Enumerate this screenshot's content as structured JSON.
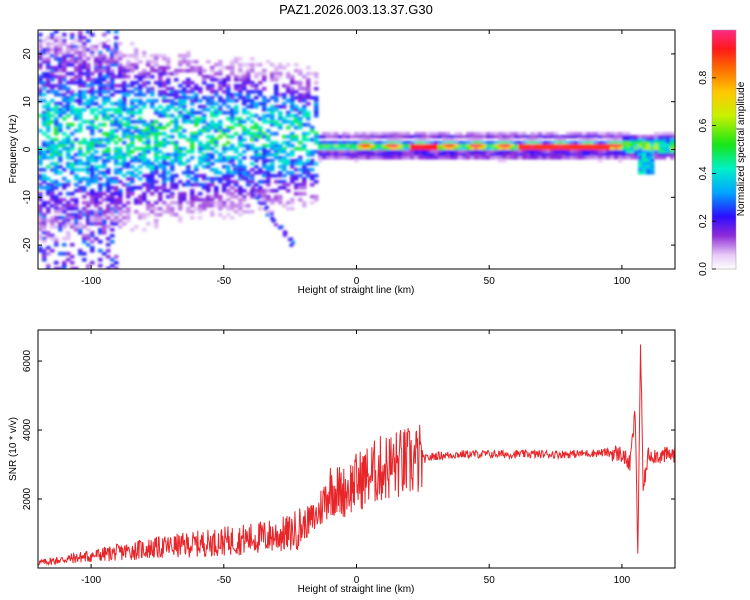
{
  "figure_title": "PAZ1.2026.003.13.37.G30",
  "chart_data": [
    {
      "type": "heatmap",
      "title": "PAZ1.2026.003.13.37.G30",
      "xlabel": "Height of straight line (km)",
      "ylabel": "Frequency (Hz)",
      "xlim": [
        -120,
        120
      ],
      "ylim": [
        -25,
        25
      ],
      "x_ticks": [
        -100,
        -50,
        0,
        50,
        100
      ],
      "y_ticks": [
        -20,
        -10,
        0,
        10,
        20
      ],
      "colorbar": {
        "label": "Normalized spectral amplitude",
        "range": [
          0.0,
          1.0
        ],
        "ticks": [
          0.0,
          0.2,
          0.4,
          0.6,
          0.8
        ],
        "tick_labels": [
          "0.0",
          "0.2",
          "0.4",
          "0.6",
          "0.8"
        ]
      },
      "description_points": [
        {
          "x_range": [
            -120,
            -20
          ],
          "freq_center": 3,
          "freq_spread": 12,
          "amplitude": 0.25
        },
        {
          "x_range": [
            -20,
            0
          ],
          "freq_center": 1.5,
          "freq_spread": 3,
          "amplitude": 0.4
        },
        {
          "x_range": [
            0,
            100
          ],
          "freq_center": 1,
          "freq_spread": 1.5,
          "amplitude": 0.9
        },
        {
          "x_range": [
            100,
            120
          ],
          "freq_center": 1,
          "freq_spread": 3,
          "amplitude": 0.5
        }
      ]
    },
    {
      "type": "line",
      "title": "",
      "xlabel": "Height of straight line (km)",
      "ylabel": "SNR (10 * v/v)",
      "xlim": [
        -120,
        120
      ],
      "ylim": [
        0,
        6900
      ],
      "x_ticks": [
        -100,
        -50,
        0,
        50,
        100
      ],
      "y_ticks": [
        2000,
        4000,
        6000
      ],
      "series": [
        {
          "name": "SNR",
          "color": "#e8262a",
          "x": [
            -120,
            -100,
            -80,
            -60,
            -40,
            -25,
            -15,
            -10,
            -5,
            0,
            5,
            10,
            15,
            20,
            25,
            30,
            40,
            60,
            80,
            95,
            100,
            103,
            105,
            106,
            107,
            108,
            110,
            115,
            120
          ],
          "values": [
            150,
            350,
            550,
            700,
            850,
            1000,
            1500,
            2300,
            2200,
            2500,
            2700,
            2900,
            3000,
            3050,
            3150,
            3250,
            3300,
            3300,
            3300,
            3350,
            3300,
            3000,
            4500,
            400,
            6500,
            2300,
            3300,
            3250,
            3300
          ]
        }
      ]
    }
  ]
}
